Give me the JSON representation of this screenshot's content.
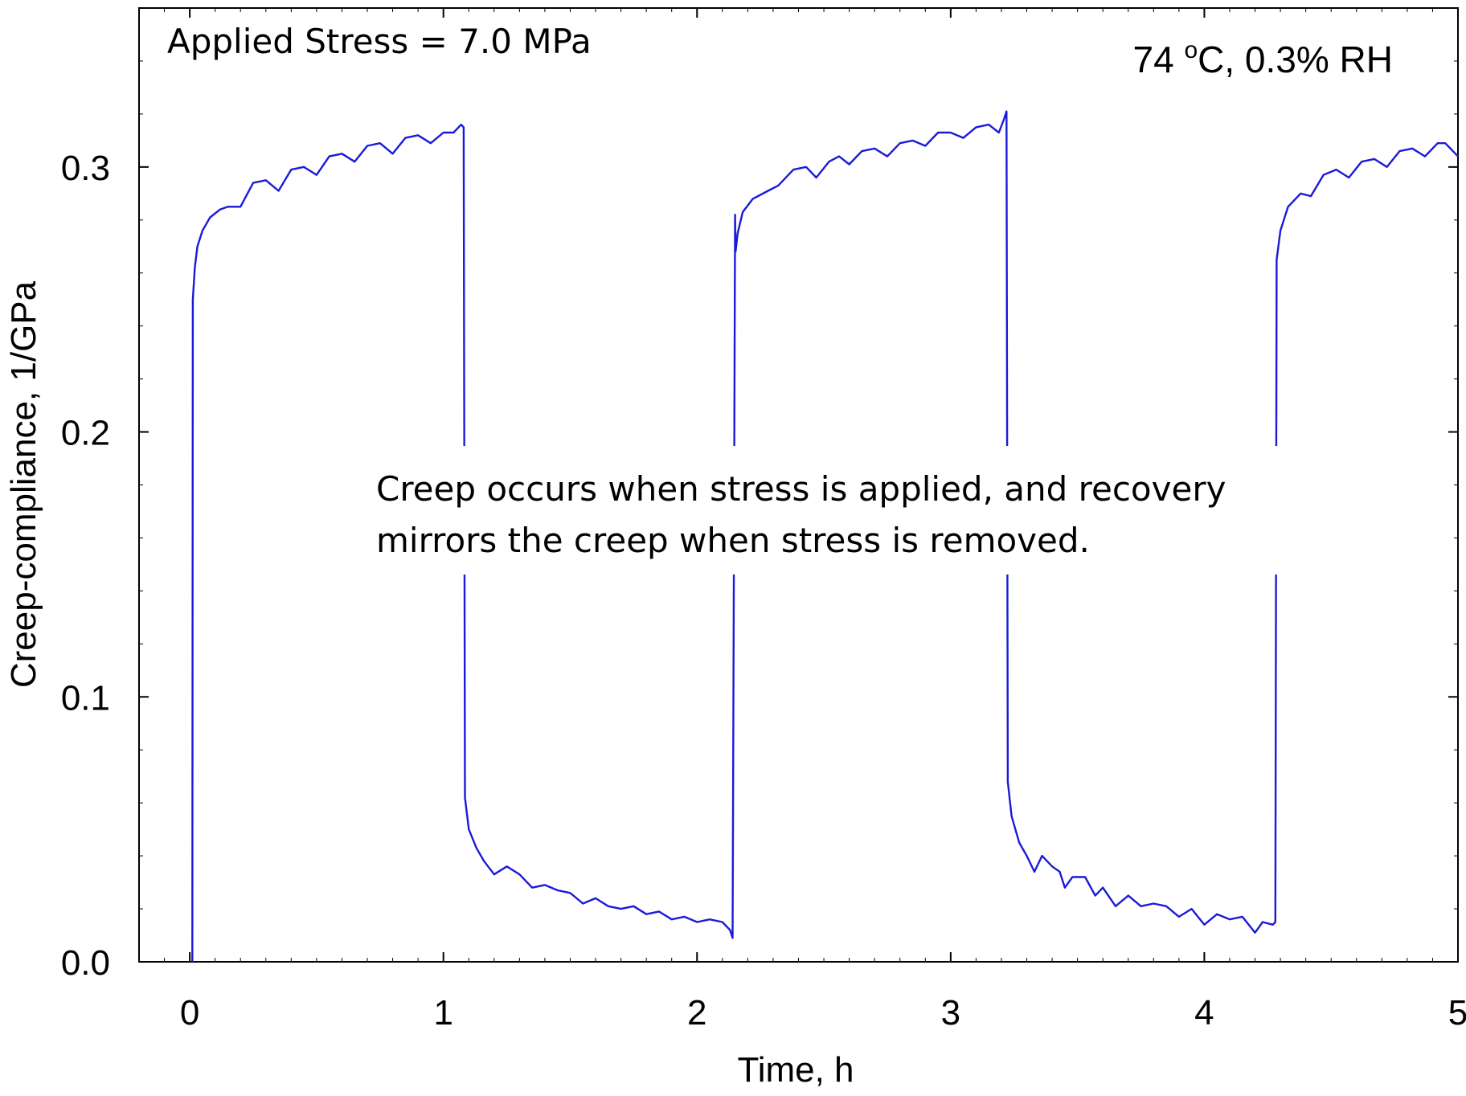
{
  "chart_data": {
    "type": "line",
    "title": "",
    "xlabel": "Time, h",
    "ylabel": "Creep-compliance, 1/GPa",
    "xlim": [
      -0.2,
      5.0
    ],
    "ylim": [
      0.0,
      0.36
    ],
    "x_ticks": [
      0,
      1,
      2,
      3,
      4,
      5
    ],
    "x_tick_labels": [
      "0",
      "1",
      "2",
      "3",
      "4",
      "5"
    ],
    "y_ticks": [
      0.0,
      0.1,
      0.2,
      0.3
    ],
    "y_tick_labels": [
      "0.0",
      "0.1",
      "0.2",
      "0.3"
    ],
    "x_minor_step": 0.1,
    "y_minor_step": 0.02,
    "grid": false,
    "legend": "none",
    "line_color": "#1a1adb",
    "annotations": {
      "stress": "Applied Stress = 7.0 MPa",
      "condition_temp": "74 ",
      "condition_deg": "o",
      "condition_rest": "C, 0.3% RH",
      "note_line1": "Creep occurs when stress is applied, and recovery",
      "note_line2": "mirrors the creep when stress is removed."
    },
    "series": [
      {
        "values": [
          [
            0.01,
            0.0
          ],
          [
            0.012,
            0.25
          ],
          [
            0.02,
            0.262
          ],
          [
            0.03,
            0.27
          ],
          [
            0.05,
            0.276
          ],
          [
            0.08,
            0.281
          ],
          [
            0.12,
            0.284
          ],
          [
            0.15,
            0.285
          ],
          [
            0.2,
            0.285
          ],
          [
            0.25,
            0.294
          ],
          [
            0.3,
            0.295
          ],
          [
            0.35,
            0.291
          ],
          [
            0.4,
            0.299
          ],
          [
            0.45,
            0.3
          ],
          [
            0.5,
            0.297
          ],
          [
            0.55,
            0.304
          ],
          [
            0.6,
            0.305
          ],
          [
            0.65,
            0.302
          ],
          [
            0.7,
            0.308
          ],
          [
            0.75,
            0.309
          ],
          [
            0.8,
            0.305
          ],
          [
            0.85,
            0.311
          ],
          [
            0.9,
            0.312
          ],
          [
            0.95,
            0.309
          ],
          [
            1.0,
            0.313
          ],
          [
            1.04,
            0.313
          ],
          [
            1.07,
            0.316
          ],
          [
            1.08,
            0.315
          ],
          [
            1.085,
            0.062
          ],
          [
            1.1,
            0.05
          ],
          [
            1.13,
            0.043
          ],
          [
            1.16,
            0.038
          ],
          [
            1.2,
            0.033
          ],
          [
            1.25,
            0.036
          ],
          [
            1.3,
            0.033
          ],
          [
            1.35,
            0.028
          ],
          [
            1.4,
            0.029
          ],
          [
            1.45,
            0.027
          ],
          [
            1.5,
            0.026
          ],
          [
            1.55,
            0.022
          ],
          [
            1.6,
            0.024
          ],
          [
            1.65,
            0.021
          ],
          [
            1.7,
            0.02
          ],
          [
            1.75,
            0.021
          ],
          [
            1.8,
            0.018
          ],
          [
            1.85,
            0.019
          ],
          [
            1.9,
            0.016
          ],
          [
            1.95,
            0.017
          ],
          [
            2.0,
            0.015
          ],
          [
            2.05,
            0.016
          ],
          [
            2.1,
            0.015
          ],
          [
            2.13,
            0.012
          ],
          [
            2.14,
            0.009
          ],
          [
            2.15,
            0.282
          ],
          [
            2.152,
            0.268
          ],
          [
            2.16,
            0.275
          ],
          [
            2.18,
            0.283
          ],
          [
            2.22,
            0.288
          ],
          [
            2.28,
            0.291
          ],
          [
            2.32,
            0.293
          ],
          [
            2.38,
            0.299
          ],
          [
            2.43,
            0.3
          ],
          [
            2.47,
            0.296
          ],
          [
            2.52,
            0.302
          ],
          [
            2.56,
            0.304
          ],
          [
            2.6,
            0.301
          ],
          [
            2.65,
            0.306
          ],
          [
            2.7,
            0.307
          ],
          [
            2.75,
            0.304
          ],
          [
            2.8,
            0.309
          ],
          [
            2.85,
            0.31
          ],
          [
            2.9,
            0.308
          ],
          [
            2.95,
            0.313
          ],
          [
            3.0,
            0.313
          ],
          [
            3.05,
            0.311
          ],
          [
            3.1,
            0.315
          ],
          [
            3.15,
            0.316
          ],
          [
            3.19,
            0.313
          ],
          [
            3.21,
            0.318
          ],
          [
            3.22,
            0.321
          ],
          [
            3.225,
            0.068
          ],
          [
            3.24,
            0.055
          ],
          [
            3.27,
            0.045
          ],
          [
            3.3,
            0.04
          ],
          [
            3.33,
            0.034
          ],
          [
            3.36,
            0.04
          ],
          [
            3.4,
            0.036
          ],
          [
            3.43,
            0.034
          ],
          [
            3.45,
            0.028
          ],
          [
            3.48,
            0.032
          ],
          [
            3.53,
            0.032
          ],
          [
            3.57,
            0.025
          ],
          [
            3.6,
            0.028
          ],
          [
            3.65,
            0.021
          ],
          [
            3.7,
            0.025
          ],
          [
            3.75,
            0.021
          ],
          [
            3.8,
            0.022
          ],
          [
            3.85,
            0.021
          ],
          [
            3.9,
            0.017
          ],
          [
            3.95,
            0.02
          ],
          [
            4.0,
            0.014
          ],
          [
            4.05,
            0.018
          ],
          [
            4.1,
            0.016
          ],
          [
            4.15,
            0.017
          ],
          [
            4.2,
            0.011
          ],
          [
            4.23,
            0.015
          ],
          [
            4.27,
            0.014
          ],
          [
            4.28,
            0.015
          ],
          [
            4.285,
            0.265
          ],
          [
            4.3,
            0.276
          ],
          [
            4.33,
            0.285
          ],
          [
            4.38,
            0.29
          ],
          [
            4.42,
            0.289
          ],
          [
            4.47,
            0.297
          ],
          [
            4.52,
            0.299
          ],
          [
            4.57,
            0.296
          ],
          [
            4.62,
            0.302
          ],
          [
            4.67,
            0.303
          ],
          [
            4.72,
            0.3
          ],
          [
            4.77,
            0.306
          ],
          [
            4.82,
            0.307
          ],
          [
            4.87,
            0.304
          ],
          [
            4.92,
            0.309
          ],
          [
            4.95,
            0.309
          ],
          [
            5.0,
            0.304
          ]
        ]
      }
    ]
  }
}
